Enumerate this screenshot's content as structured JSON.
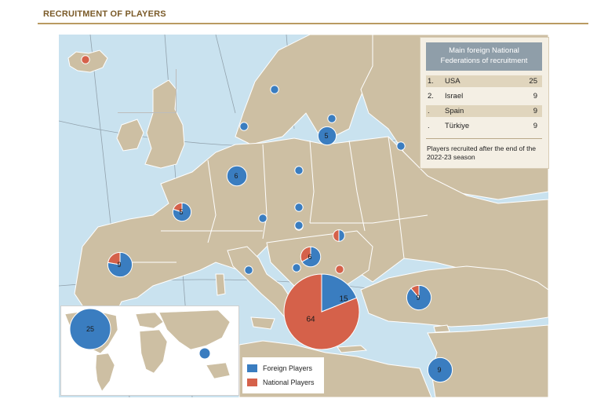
{
  "title": "RECRUITMENT OF PLAYERS",
  "colors": {
    "foreign": "#3a7dc0",
    "national": "#d5614a",
    "sea": "#c9e2ef",
    "land": "#cdbfa3",
    "border": "#ffffff"
  },
  "info_box": {
    "heading_line1": "Main foreign National",
    "heading_line2": "Federations of recruitment",
    "rows": [
      {
        "rank": "1.",
        "country": "USA",
        "count": "25"
      },
      {
        "rank": "2.",
        "country": "Israel",
        "count": "9"
      },
      {
        "rank": ".",
        "country": "Spain",
        "count": "9"
      },
      {
        "rank": ".",
        "country": "Türkiye",
        "count": "9"
      }
    ],
    "note": "Players recruited after the end of the 2022-23 season"
  },
  "legend": {
    "foreign_label": "Foreign Players",
    "national_label": "National Players"
  },
  "markers": [
    {
      "id": "iceland",
      "label": "",
      "foreign": 0,
      "national": 1
    },
    {
      "id": "norway-sweden",
      "label": "",
      "foreign": 1,
      "national": 0
    },
    {
      "id": "denmark",
      "label": "",
      "foreign": 1,
      "national": 0
    },
    {
      "id": "latvia",
      "label": "",
      "foreign": 1,
      "national": 0
    },
    {
      "id": "lithuania",
      "label": "5",
      "foreign": 5,
      "national": 0
    },
    {
      "id": "russia",
      "label": "",
      "foreign": 1,
      "national": 0
    },
    {
      "id": "germany",
      "label": "6",
      "foreign": 6,
      "national": 0
    },
    {
      "id": "poland",
      "label": "",
      "foreign": 1,
      "national": 0
    },
    {
      "id": "france",
      "label": "5",
      "foreign": 4,
      "national": 1
    },
    {
      "id": "switzerland",
      "label": "",
      "foreign": 1,
      "national": 0
    },
    {
      "id": "czechia",
      "label": "",
      "foreign": 1,
      "national": 0
    },
    {
      "id": "hungary",
      "label": "",
      "foreign": 1,
      "national": 0
    },
    {
      "id": "serbia",
      "label": "",
      "foreign": 1,
      "national": 0
    },
    {
      "id": "romania",
      "label": "",
      "foreign": 1,
      "national": 1
    },
    {
      "id": "montenegro",
      "label": "6",
      "foreign": 4,
      "national": 2
    },
    {
      "id": "bulgaria",
      "label": "",
      "foreign": 0,
      "national": 1
    },
    {
      "id": "albania",
      "label": "",
      "foreign": 1,
      "national": 0
    },
    {
      "id": "italy",
      "label": "",
      "foreign": 1,
      "national": 0
    },
    {
      "id": "spain",
      "label": "9",
      "foreign": 7,
      "national": 2
    },
    {
      "id": "turkiye",
      "label": "9",
      "foreign": 8,
      "national": 1
    },
    {
      "id": "israel",
      "label": "9",
      "foreign": 9,
      "national": 0
    },
    {
      "id": "greece",
      "label_foreign": "15",
      "label_national": "64",
      "foreign": 15,
      "national": 64
    },
    {
      "id": "usa",
      "label": "25",
      "foreign": 25,
      "national": 0
    },
    {
      "id": "asia",
      "label": "",
      "foreign": 1,
      "national": 0
    }
  ]
}
